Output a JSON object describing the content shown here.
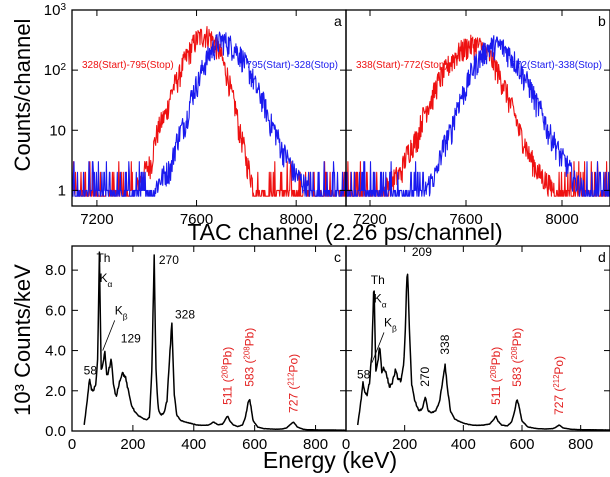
{
  "colors": {
    "red": "#ee1111",
    "blue": "#1a1aee",
    "black": "#000000",
    "annotation_red": "#e32020"
  },
  "shared_labels": {
    "top_xlabel": "TAC channel (2.26 ps/channel)",
    "top_ylabel": "Counts/channel",
    "bottom_xlabel": "Energy (keV)",
    "bottom_ylabel": "10³ Counts/keV"
  },
  "chart_data": [
    {
      "panel": "a",
      "type": "line",
      "log_y": true,
      "xlim": [
        7100,
        8200
      ],
      "ylim": [
        0.55,
        1000
      ],
      "x_ticks": [
        "7200",
        "7600",
        "8000"
      ],
      "y_ticks": [
        "1",
        "10",
        "10²",
        "10³"
      ],
      "series": [
        {
          "name": "328(Start)-795(Stop)",
          "color": "red",
          "x": [
            7100,
            7350,
            7420,
            7480,
            7530,
            7570,
            7600,
            7630,
            7650,
            7680,
            7710,
            7740,
            7770,
            7800,
            7830,
            7860,
            8200
          ],
          "y": [
            0.8,
            0.8,
            3,
            20,
            80,
            200,
            330,
            400,
            380,
            260,
            120,
            40,
            10,
            3,
            1,
            0.8,
            0.8
          ]
        },
        {
          "name": "795(Start)-328(Stop)",
          "color": "blue",
          "x": [
            7100,
            7420,
            7500,
            7560,
            7610,
            7650,
            7680,
            7700,
            7720,
            7760,
            7800,
            7840,
            7890,
            7940,
            7990,
            8050,
            8200
          ],
          "y": [
            0.8,
            0.8,
            2.5,
            15,
            70,
            180,
            280,
            320,
            300,
            220,
            120,
            50,
            15,
            5,
            2,
            1,
            0.8
          ]
        }
      ]
    },
    {
      "panel": "b",
      "type": "line",
      "log_y": true,
      "xlim": [
        7100,
        8200
      ],
      "ylim": [
        0.55,
        1000
      ],
      "x_ticks": [
        "7200",
        "7600",
        "8000"
      ],
      "y_ticks": [],
      "series": [
        {
          "name": "338(Start)-772(Stop)",
          "color": "red",
          "x": [
            7100,
            7250,
            7330,
            7400,
            7460,
            7520,
            7570,
            7610,
            7640,
            7670,
            7700,
            7740,
            7780,
            7820,
            7860,
            7900,
            7950,
            8000,
            8200
          ],
          "y": [
            0.8,
            0.9,
            2,
            8,
            35,
            110,
            200,
            260,
            270,
            240,
            170,
            80,
            30,
            10,
            4,
            2,
            1.2,
            0.8,
            0.8
          ]
        },
        {
          "name": "772(Start)-338(Stop)",
          "color": "blue",
          "x": [
            7100,
            7420,
            7480,
            7540,
            7600,
            7650,
            7690,
            7720,
            7750,
            7790,
            7840,
            7890,
            7940,
            7990,
            8050,
            8100,
            8200
          ],
          "y": [
            0.8,
            0.8,
            2,
            10,
            50,
            150,
            230,
            270,
            250,
            170,
            80,
            30,
            10,
            4,
            1.5,
            0.9,
            0.8
          ]
        }
      ]
    },
    {
      "panel": "c",
      "type": "line",
      "xlim": [
        0,
        900
      ],
      "ylim": [
        0,
        9.2
      ],
      "x_ticks": [
        "0",
        "200",
        "400",
        "600",
        "800"
      ],
      "y_ticks": [
        "0.0",
        "2.0",
        "4.0",
        "6.0",
        "8.0"
      ],
      "series": [
        {
          "color": "black",
          "x": [
            40,
            50,
            58,
            63,
            70,
            78,
            84,
            90,
            96,
            102,
            108,
            115,
            122,
            129,
            136,
            145,
            155,
            165,
            175,
            185,
            195,
            205,
            215,
            225,
            235,
            245,
            255,
            262,
            270,
            276,
            283,
            292,
            302,
            312,
            320,
            328,
            336,
            344,
            355,
            370,
            390,
            410,
            430,
            450,
            465,
            480,
            495,
            505,
            511,
            518,
            530,
            545,
            560,
            570,
            578,
            583,
            588,
            595,
            610,
            630,
            650,
            670,
            690,
            705,
            715,
            727,
            740,
            760,
            780,
            810,
            850,
            900
          ],
          "y": [
            0.3,
            1.5,
            2.6,
            2.1,
            2.0,
            2.3,
            3.5,
            8.7,
            3.0,
            3.4,
            4.0,
            2.7,
            3.1,
            3.6,
            2.3,
            1.7,
            2.4,
            2.9,
            2.7,
            2.0,
            1.3,
            1.0,
            0.8,
            0.7,
            0.6,
            0.55,
            0.7,
            3.0,
            8.6,
            3.0,
            1.1,
            0.8,
            0.9,
            1.5,
            3.5,
            5.3,
            1.8,
            0.8,
            0.55,
            0.45,
            0.38,
            0.3,
            0.28,
            0.3,
            0.45,
            0.3,
            0.35,
            0.6,
            0.75,
            0.5,
            0.3,
            0.22,
            0.3,
            0.7,
            1.4,
            1.6,
            1.2,
            0.5,
            0.2,
            0.12,
            0.1,
            0.09,
            0.1,
            0.15,
            0.3,
            0.45,
            0.2,
            0.08,
            0.06,
            0.05,
            0.05,
            0.04
          ]
        }
      ],
      "annotations": [
        {
          "text": "58",
          "x": 58,
          "y": 2.6,
          "color": "black",
          "rotate": false
        },
        {
          "text": "Th",
          "x": 100,
          "y": 8.2,
          "color": "black",
          "rotate": false
        },
        {
          "text": "Kα",
          "x": 110,
          "y": 7.2,
          "color": "black",
          "rotate": false
        },
        {
          "text": "Kβ",
          "x": 160,
          "y": 5.6,
          "color": "black",
          "rotate": false
        },
        {
          "text": "129",
          "x": 180,
          "y": 4.2,
          "color": "black",
          "rotate": false
        },
        {
          "text": "270",
          "x": 305,
          "y": 8.1,
          "color": "black",
          "rotate": false
        },
        {
          "text": "328",
          "x": 358,
          "y": 5.4,
          "color": "black",
          "rotate": false
        },
        {
          "text": "511 (208Pb)",
          "x": 511,
          "y": 1.0,
          "color": "red",
          "rotate": true
        },
        {
          "text": "583 (208Pb)",
          "x": 583,
          "y": 1.9,
          "color": "red",
          "rotate": true
        },
        {
          "text": "727 (212Po)",
          "x": 727,
          "y": 0.6,
          "color": "red",
          "rotate": true
        }
      ]
    },
    {
      "panel": "d",
      "type": "line",
      "xlim": [
        0,
        900
      ],
      "ylim": [
        0,
        9.2
      ],
      "x_ticks": [
        "0",
        "200",
        "400",
        "600",
        "800"
      ],
      "y_ticks": [],
      "series": [
        {
          "color": "black",
          "x": [
            40,
            50,
            58,
            64,
            72,
            80,
            88,
            95,
            102,
            109,
            115,
            122,
            129,
            138,
            148,
            158,
            168,
            178,
            188,
            196,
            202,
            209,
            216,
            224,
            235,
            248,
            260,
            270,
            280,
            292,
            305,
            318,
            330,
            338,
            346,
            356,
            370,
            390,
            410,
            430,
            450,
            470,
            490,
            505,
            511,
            518,
            530,
            550,
            565,
            575,
            583,
            590,
            600,
            620,
            650,
            680,
            705,
            715,
            727,
            740,
            770,
            820,
            900
          ],
          "y": [
            0.3,
            1.4,
            2.4,
            1.9,
            1.8,
            2.4,
            3.8,
            7.5,
            3.0,
            3.5,
            4.3,
            2.9,
            3.2,
            2.8,
            2.2,
            2.4,
            3.0,
            2.6,
            2.5,
            3.2,
            5.0,
            8.3,
            5.0,
            2.3,
            1.5,
            1.0,
            1.1,
            1.7,
            1.0,
            0.9,
            1.0,
            1.4,
            2.5,
            3.3,
            2.1,
            1.0,
            0.6,
            0.45,
            0.35,
            0.3,
            0.28,
            0.3,
            0.35,
            0.6,
            0.75,
            0.5,
            0.3,
            0.25,
            0.45,
            1.0,
            1.6,
            1.2,
            0.5,
            0.2,
            0.12,
            0.1,
            0.12,
            0.18,
            0.3,
            0.15,
            0.08,
            0.06,
            0.05
          ]
        }
      ],
      "annotations": [
        {
          "text": "58",
          "x": 58,
          "y": 2.4,
          "color": "black",
          "rotate": false
        },
        {
          "text": "Th",
          "x": 105,
          "y": 7.1,
          "color": "black",
          "rotate": false
        },
        {
          "text": "Kα",
          "x": 115,
          "y": 6.2,
          "color": "black",
          "rotate": false
        },
        {
          "text": "Kβ",
          "x": 150,
          "y": 5.0,
          "color": "black",
          "rotate": false
        },
        {
          "text": "209",
          "x": 245,
          "y": 8.5,
          "color": "black",
          "rotate": false
        },
        {
          "text": "270",
          "x": 270,
          "y": 1.9,
          "color": "black",
          "rotate": true
        },
        {
          "text": "338",
          "x": 338,
          "y": 3.5,
          "color": "black",
          "rotate": true
        },
        {
          "text": "511 (208Pb)",
          "x": 511,
          "y": 1.0,
          "color": "red",
          "rotate": true
        },
        {
          "text": "583 (208Pb)",
          "x": 583,
          "y": 1.9,
          "color": "red",
          "rotate": true
        },
        {
          "text": "727 (212Po)",
          "x": 727,
          "y": 0.5,
          "color": "red",
          "rotate": true
        }
      ]
    }
  ]
}
